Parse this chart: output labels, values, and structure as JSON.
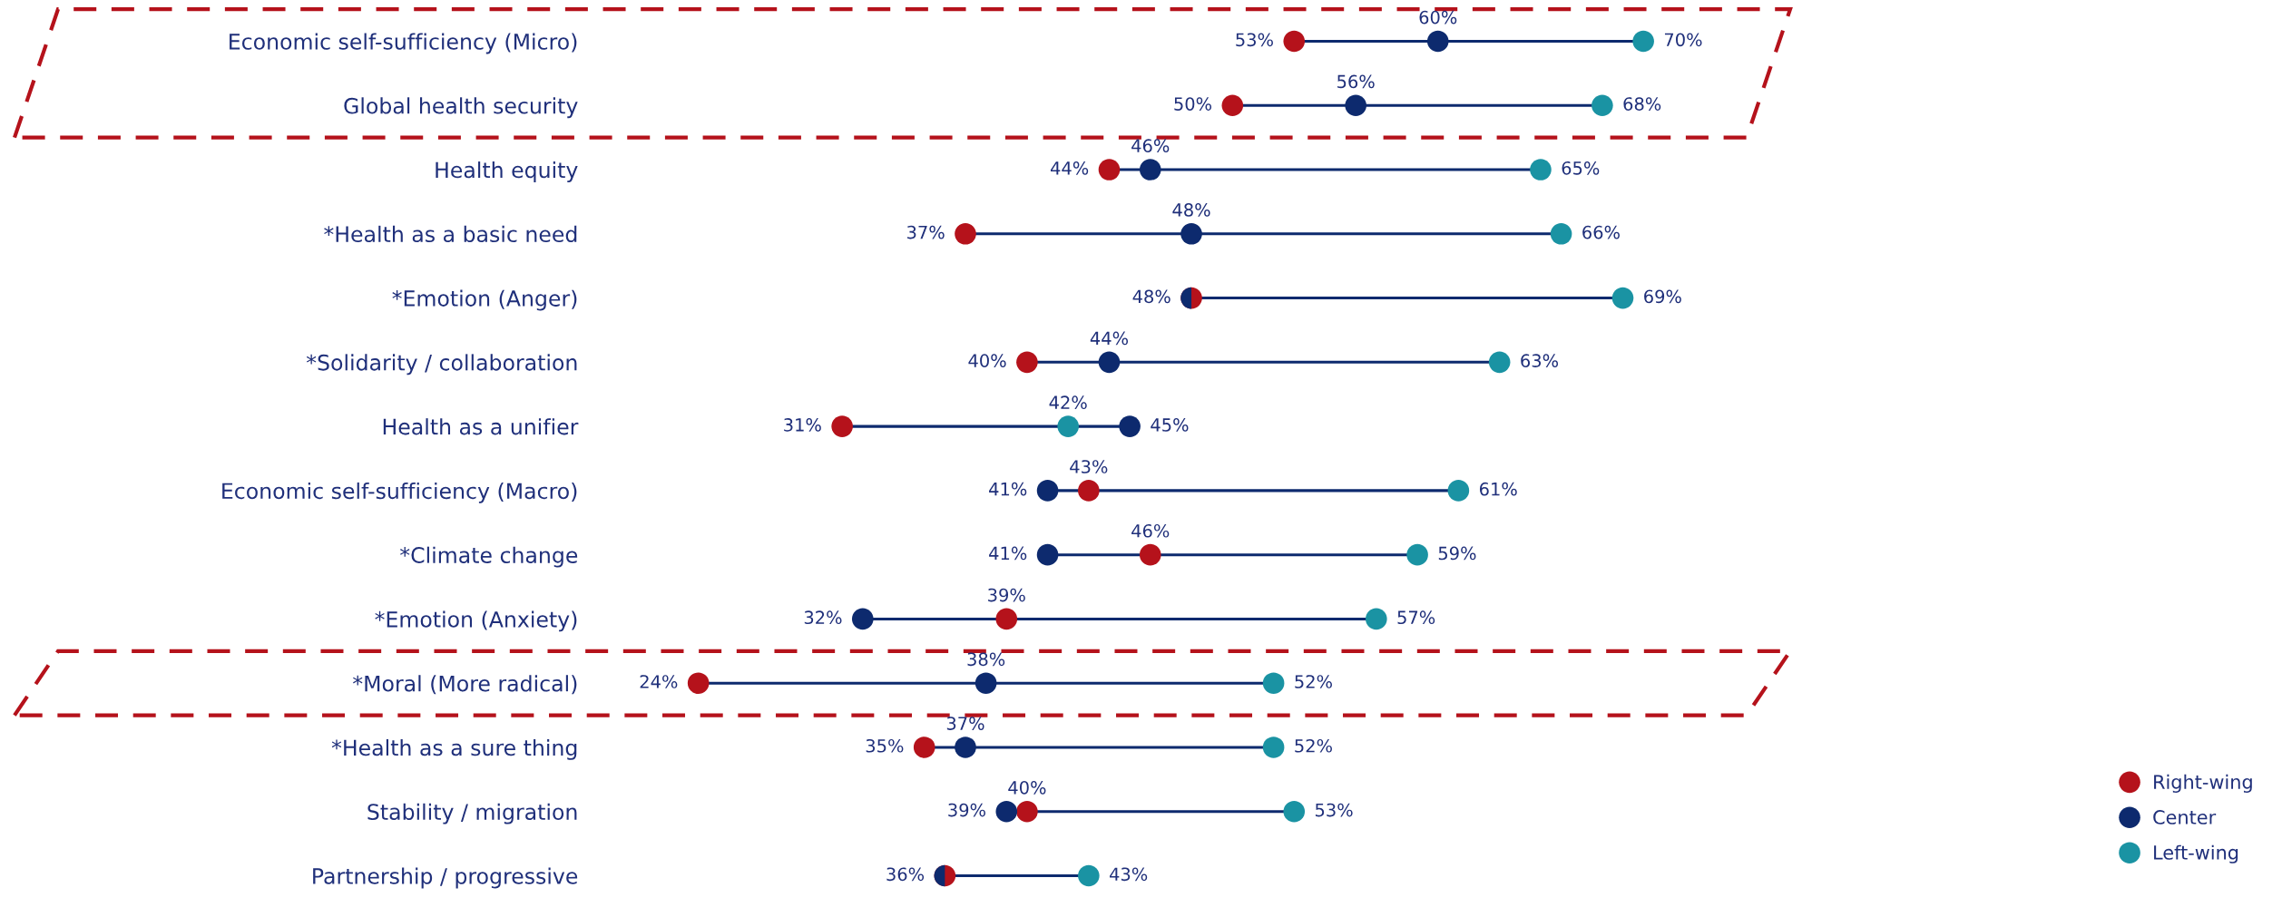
{
  "chart_data": {
    "type": "scatter",
    "orientation": "horizontal",
    "categories": [
      "Economic self-sufficiency (Micro)",
      "Global health security",
      "Health equity",
      "*Health as a basic need",
      "*Emotion (Anger)",
      "*Solidarity / collaboration",
      "Health as a unifier",
      "Economic self-sufficiency (Macro)",
      "*Climate change",
      "*Emotion (Anxiety)",
      "*Moral (More radical)",
      "*Health as a sure thing",
      "Stability / migration",
      "Partnership / progressive"
    ],
    "series": [
      {
        "name": "Right-wing",
        "color": "#b5121b",
        "values": [
          53,
          50,
          44,
          37,
          48,
          40,
          31,
          43,
          46,
          39,
          24,
          35,
          40,
          36
        ],
        "value_labels": [
          "53%",
          "50%",
          "44%",
          "37%",
          null,
          "40%",
          "31%",
          "43%",
          "46%",
          "39%",
          "24%",
          "35%",
          "40%",
          "36%"
        ]
      },
      {
        "name": "Center",
        "color": "#0d2a6e",
        "values": [
          60,
          56,
          46,
          48,
          48,
          44,
          45,
          41,
          41,
          32,
          38,
          37,
          39,
          36
        ],
        "value_labels": [
          "60%",
          "56%",
          "46%",
          "48%",
          "48%",
          "44%",
          "45%",
          "41%",
          "41%",
          "32%",
          "38%",
          "37%",
          "39%",
          null
        ]
      },
      {
        "name": "Left-wing",
        "color": "#1a93a3",
        "values": [
          70,
          68,
          65,
          66,
          69,
          63,
          42,
          61,
          59,
          57,
          52,
          52,
          53,
          43
        ],
        "value_labels": [
          "70%",
          "68%",
          "65%",
          "66%",
          "69%",
          "63%",
          "42%",
          "61%",
          "59%",
          "57%",
          "52%",
          "52%",
          "53%",
          "43%"
        ]
      }
    ],
    "tick_labels": "y",
    "marker": "circle",
    "legend": "bottom right",
    "grid": false
  }
}
